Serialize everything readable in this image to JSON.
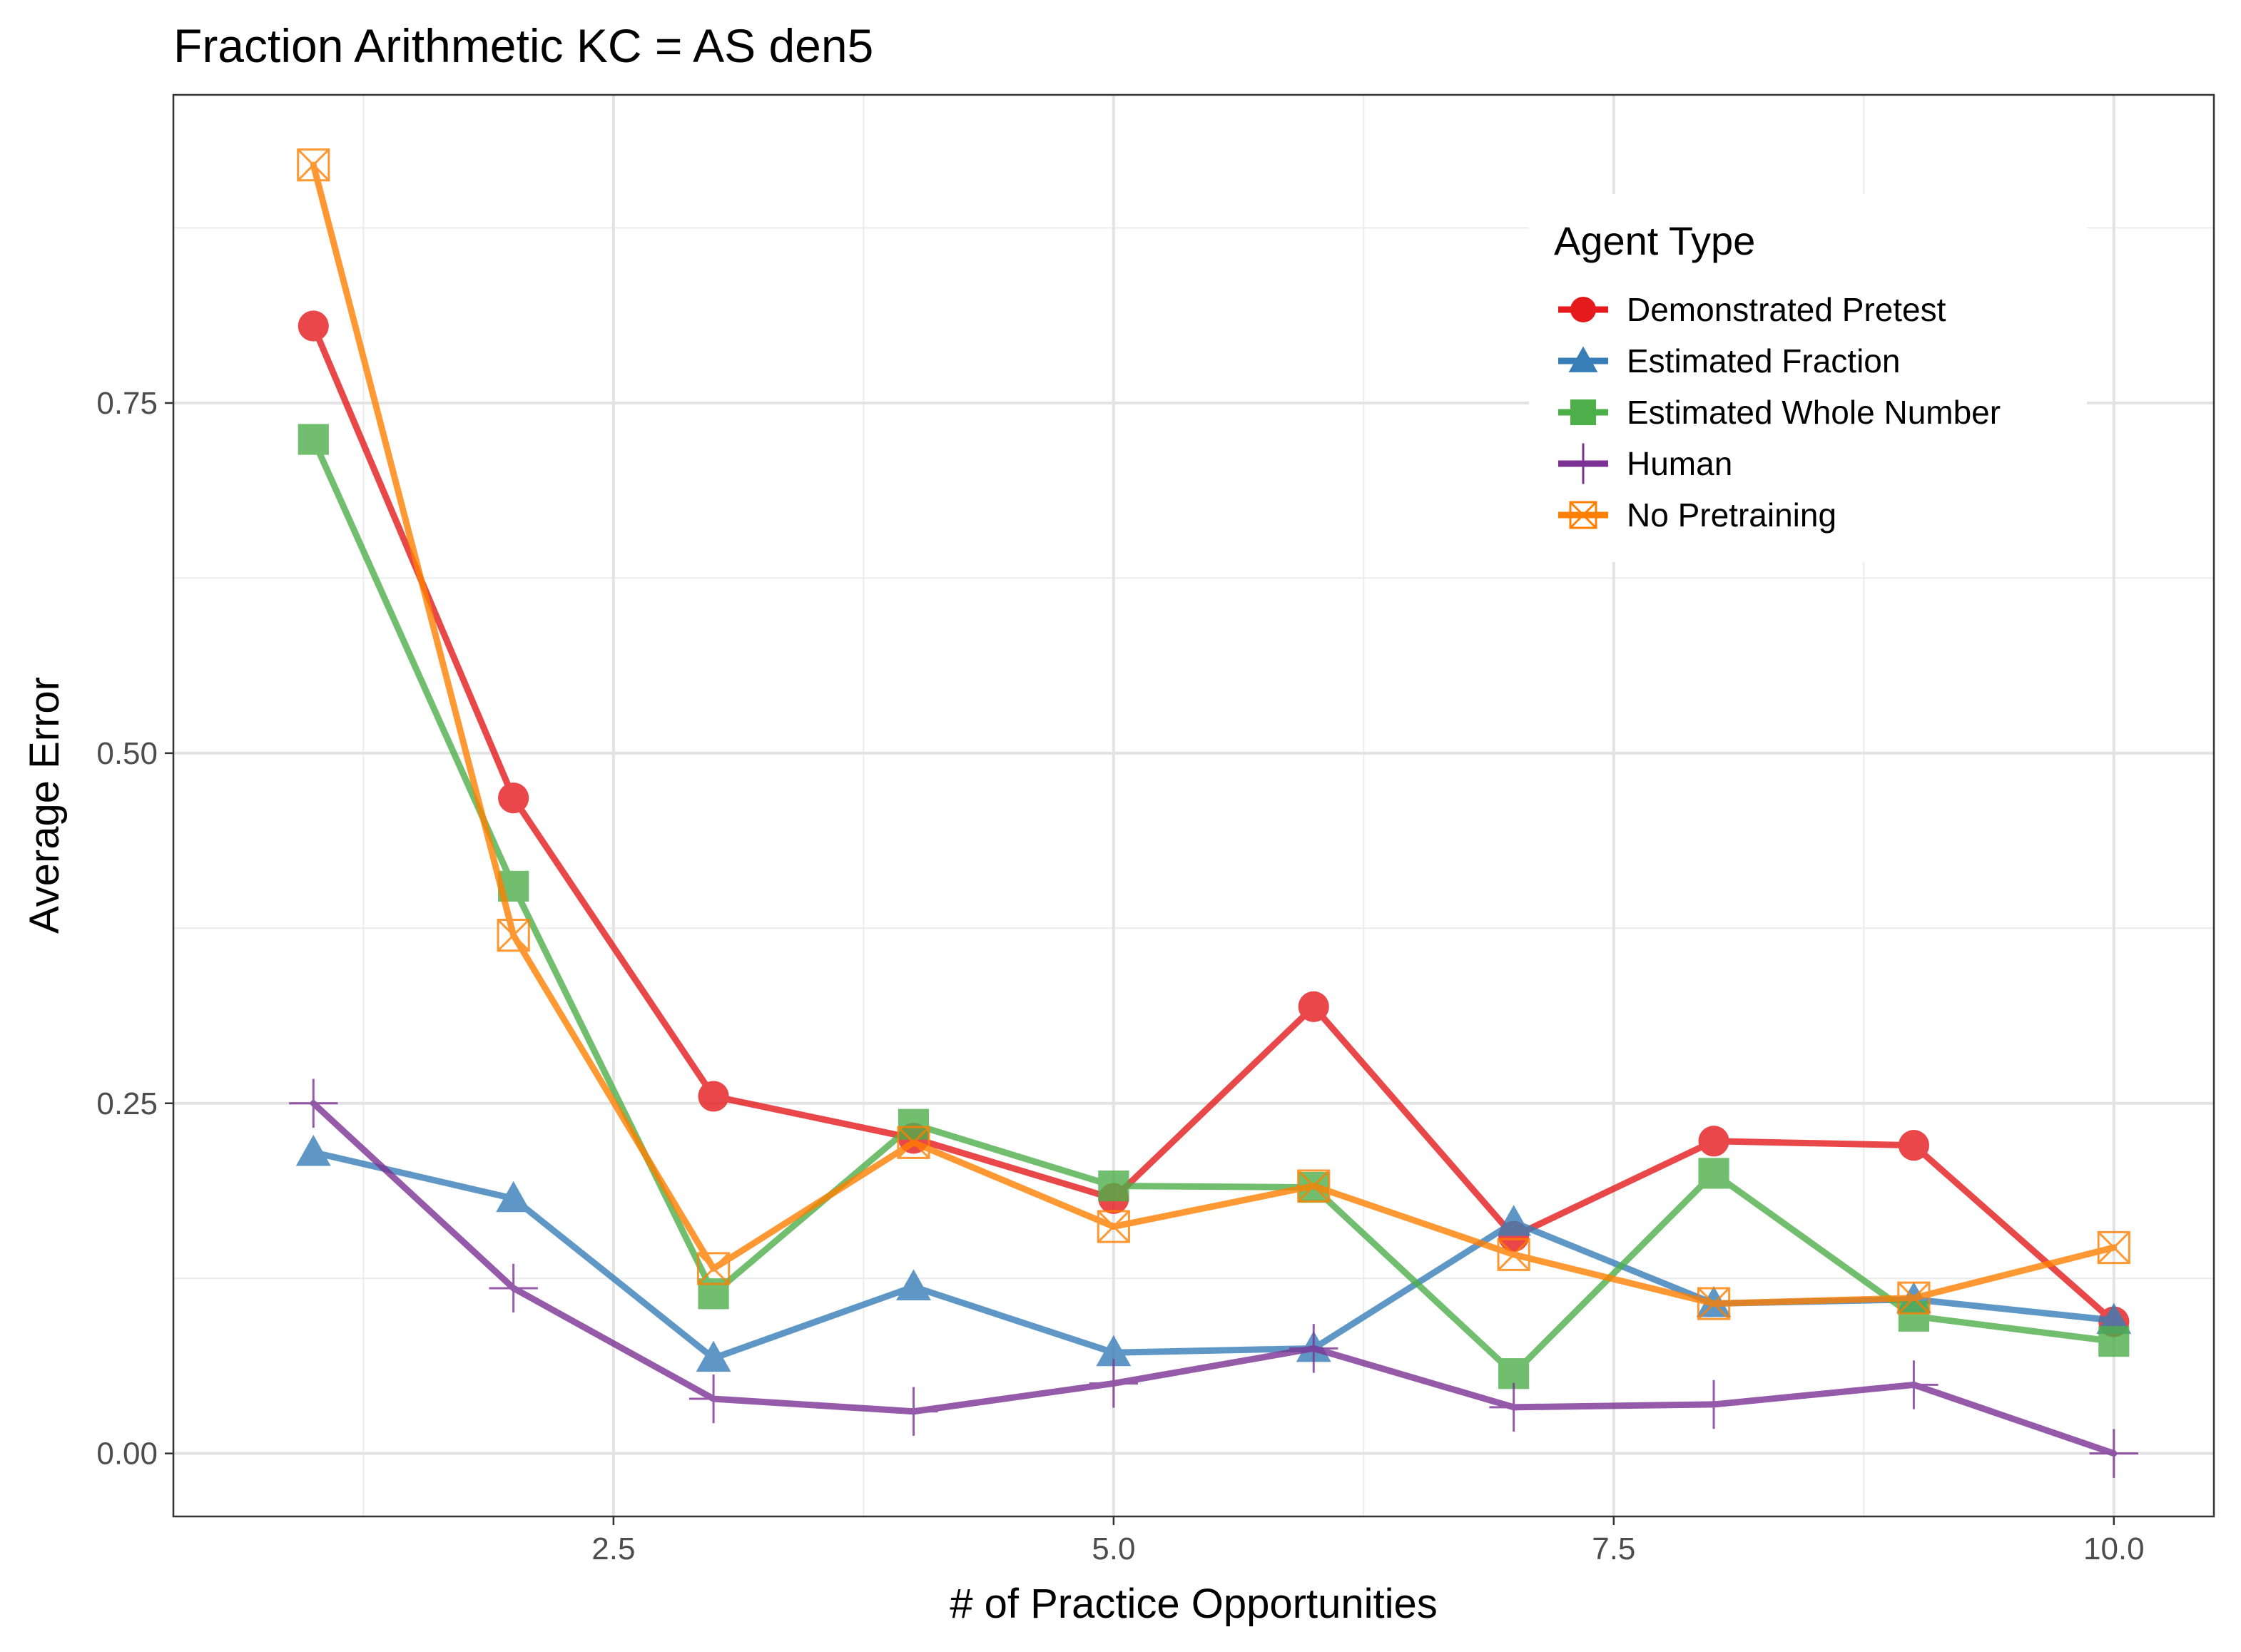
{
  "chart_data": {
    "type": "line",
    "title": "Fraction Arithmetic KC =  AS den5",
    "xlabel": "# of Practice Opportunities",
    "ylabel": "Average Error",
    "xlim": [
      0.3,
      10.5
    ],
    "ylim": [
      -0.045,
      0.97
    ],
    "x_ticks": [
      2.5,
      5.0,
      7.5,
      10.0
    ],
    "x_tick_labels": [
      "2.5",
      "5.0",
      "7.5",
      "10.0"
    ],
    "y_ticks": [
      0.0,
      0.25,
      0.5,
      0.75
    ],
    "y_tick_labels": [
      "0.00",
      "0.25",
      "0.50",
      "0.75"
    ],
    "grid": true,
    "legend": {
      "title": "Agent Type",
      "placement": "top-right"
    },
    "x": [
      1,
      2,
      3,
      4,
      5,
      6,
      7,
      8,
      9,
      10
    ],
    "series": [
      {
        "name": "Demonstrated Pretest",
        "color": "#e41a1c",
        "marker": "circle",
        "values": [
          0.805,
          0.468,
          0.255,
          0.225,
          0.182,
          0.319,
          0.155,
          0.223,
          0.22,
          0.094
        ]
      },
      {
        "name": "Estimated Fraction",
        "color": "#377eb8",
        "marker": "triangle",
        "values": [
          0.215,
          0.182,
          0.068,
          0.119,
          0.072,
          0.075,
          0.165,
          0.107,
          0.11,
          0.095
        ]
      },
      {
        "name": "Estimated Whole Number",
        "color": "#4daf4a",
        "marker": "square",
        "values": [
          0.724,
          0.405,
          0.114,
          0.235,
          0.191,
          0.19,
          0.057,
          0.2,
          0.098,
          0.08
        ]
      },
      {
        "name": "Human",
        "color": "#7b3294",
        "marker": "plus",
        "values": [
          0.25,
          0.118,
          0.039,
          0.03,
          0.05,
          0.075,
          0.033,
          0.035,
          0.049,
          0.0
        ]
      },
      {
        "name": "No Pretraining",
        "color": "#ff7f00",
        "marker": "square-x",
        "values": [
          0.92,
          0.37,
          0.132,
          0.222,
          0.162,
          0.191,
          0.142,
          0.107,
          0.111,
          0.147
        ]
      }
    ]
  }
}
